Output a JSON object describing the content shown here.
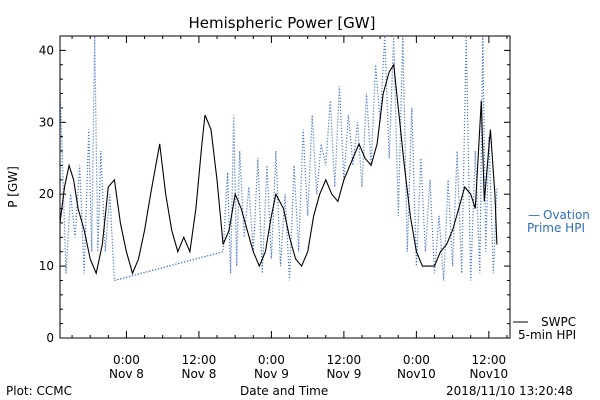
{
  "chart_data": {
    "type": "line",
    "title": "Hemispheric Power [GW]",
    "xlabel": "Date and Time",
    "ylabel": "P [GW]",
    "ylim": [
      0,
      42
    ],
    "yticks": [
      0,
      10,
      20,
      30,
      40
    ],
    "xlim": [
      "2018-11-07 13:00",
      "2018-11-10 15:30"
    ],
    "grid": false,
    "x_ticks": [
      {
        "x": "2018-11-08 00:00",
        "time": "0:00",
        "date": "Nov 8"
      },
      {
        "x": "2018-11-08 12:00",
        "time": "12:00",
        "date": "Nov 8"
      },
      {
        "x": "2018-11-09 00:00",
        "time": "0:00",
        "date": "Nov 9"
      },
      {
        "x": "2018-11-09 12:00",
        "time": "12:00",
        "date": "Nov 9"
      },
      {
        "x": "2018-11-10 00:00",
        "time": "0:00",
        "date": "Nov10"
      },
      {
        "x": "2018-11-10 12:00",
        "time": "12:00",
        "date": "Nov10"
      }
    ],
    "legend_placement": "right",
    "series": [
      {
        "name": "SWPC 5-min HPI",
        "style": "solid",
        "color": "#000000",
        "points": [
          [
            "2018-11-07 13:00",
            16
          ],
          [
            "2018-11-07 13:45",
            21
          ],
          [
            "2018-11-07 14:30",
            24
          ],
          [
            "2018-11-07 15:15",
            22
          ],
          [
            "2018-11-07 16:00",
            18
          ],
          [
            "2018-11-07 17:00",
            15
          ],
          [
            "2018-11-07 18:00",
            11
          ],
          [
            "2018-11-07 19:00",
            9
          ],
          [
            "2018-11-07 20:00",
            13
          ],
          [
            "2018-11-07 21:00",
            21
          ],
          [
            "2018-11-07 22:00",
            22
          ],
          [
            "2018-11-07 23:00",
            16
          ],
          [
            "2018-11-08 00:00",
            12
          ],
          [
            "2018-11-08 01:00",
            9
          ],
          [
            "2018-11-08 02:00",
            11
          ],
          [
            "2018-11-08 03:00",
            15
          ],
          [
            "2018-11-08 04:00",
            20
          ],
          [
            "2018-11-08 05:30",
            27
          ],
          [
            "2018-11-08 06:30",
            20
          ],
          [
            "2018-11-08 07:30",
            15
          ],
          [
            "2018-11-08 08:30",
            12
          ],
          [
            "2018-11-08 09:30",
            14
          ],
          [
            "2018-11-08 10:30",
            12
          ],
          [
            "2018-11-08 11:30",
            18
          ],
          [
            "2018-11-08 12:30",
            27
          ],
          [
            "2018-11-08 13:00",
            31
          ],
          [
            "2018-11-08 14:00",
            29
          ],
          [
            "2018-11-08 15:00",
            22
          ],
          [
            "2018-11-08 16:00",
            13
          ],
          [
            "2018-11-08 17:00",
            15
          ],
          [
            "2018-11-08 18:00",
            20
          ],
          [
            "2018-11-08 19:00",
            18
          ],
          [
            "2018-11-08 20:00",
            15
          ],
          [
            "2018-11-08 21:00",
            12
          ],
          [
            "2018-11-08 22:00",
            10
          ],
          [
            "2018-11-08 23:00",
            12
          ],
          [
            "2018-11-09 00:00",
            17
          ],
          [
            "2018-11-09 00:45",
            20
          ],
          [
            "2018-11-09 02:00",
            18
          ],
          [
            "2018-11-09 03:00",
            14
          ],
          [
            "2018-11-09 04:00",
            11
          ],
          [
            "2018-11-09 05:00",
            10
          ],
          [
            "2018-11-09 06:00",
            12
          ],
          [
            "2018-11-09 07:00",
            17
          ],
          [
            "2018-11-09 08:00",
            20
          ],
          [
            "2018-11-09 09:00",
            22
          ],
          [
            "2018-11-09 10:00",
            20
          ],
          [
            "2018-11-09 11:00",
            19
          ],
          [
            "2018-11-09 12:00",
            22
          ],
          [
            "2018-11-09 13:00",
            24
          ],
          [
            "2018-11-09 14:30",
            27
          ],
          [
            "2018-11-09 15:30",
            25
          ],
          [
            "2018-11-09 16:30",
            24
          ],
          [
            "2018-11-09 17:30",
            27
          ],
          [
            "2018-11-09 18:30",
            34
          ],
          [
            "2018-11-09 19:30",
            37
          ],
          [
            "2018-11-09 20:15",
            38
          ],
          [
            "2018-11-09 21:00",
            32
          ],
          [
            "2018-11-09 22:00",
            24
          ],
          [
            "2018-11-09 23:00",
            17
          ],
          [
            "2018-11-10 00:00",
            12
          ],
          [
            "2018-11-10 01:00",
            10
          ],
          [
            "2018-11-10 02:00",
            10
          ],
          [
            "2018-11-10 03:00",
            10
          ],
          [
            "2018-11-10 04:00",
            12
          ],
          [
            "2018-11-10 05:00",
            13
          ],
          [
            "2018-11-10 06:00",
            15
          ],
          [
            "2018-11-10 07:00",
            18
          ],
          [
            "2018-11-10 08:00",
            21
          ],
          [
            "2018-11-10 09:00",
            20
          ],
          [
            "2018-11-10 09:45",
            18
          ],
          [
            "2018-11-10 10:45",
            33
          ],
          [
            "2018-11-10 11:15",
            19
          ],
          [
            "2018-11-10 12:15",
            29
          ],
          [
            "2018-11-10 13:00",
            20
          ],
          [
            "2018-11-10 13:20",
            13
          ]
        ]
      },
      {
        "name": "Ovation Prime HPI",
        "style": "dotted",
        "color": "#4a78c8",
        "points": [
          [
            "2018-11-07 13:00",
            35
          ],
          [
            "2018-11-07 13:30",
            22
          ],
          [
            "2018-11-07 14:00",
            9
          ],
          [
            "2018-11-07 14:45",
            20
          ],
          [
            "2018-11-07 15:30",
            14
          ],
          [
            "2018-11-07 16:15",
            24
          ],
          [
            "2018-11-07 17:00",
            9
          ],
          [
            "2018-11-07 17:45",
            29
          ],
          [
            "2018-11-07 18:15",
            12
          ],
          [
            "2018-11-07 18:45",
            42
          ],
          [
            "2018-11-07 19:15",
            12
          ],
          [
            "2018-11-07 19:45",
            26
          ],
          [
            "2018-11-07 20:30",
            12
          ],
          [
            "2018-11-07 21:15",
            20
          ],
          [
            "2018-11-07 22:00",
            8
          ],
          [
            "2018-11-08 16:00",
            12
          ],
          [
            "2018-11-08 16:45",
            23
          ],
          [
            "2018-11-08 17:15",
            9
          ],
          [
            "2018-11-08 17:45",
            31
          ],
          [
            "2018-11-08 18:15",
            10
          ],
          [
            "2018-11-08 18:45",
            26
          ],
          [
            "2018-11-08 19:30",
            14
          ],
          [
            "2018-11-08 20:15",
            21
          ],
          [
            "2018-11-08 21:00",
            12
          ],
          [
            "2018-11-08 21:45",
            25
          ],
          [
            "2018-11-08 22:30",
            9
          ],
          [
            "2018-11-08 23:15",
            24
          ],
          [
            "2018-11-09 00:00",
            11
          ],
          [
            "2018-11-09 00:45",
            26
          ],
          [
            "2018-11-09 01:30",
            10
          ],
          [
            "2018-11-09 02:15",
            20
          ],
          [
            "2018-11-09 03:00",
            8
          ],
          [
            "2018-11-09 03:45",
            24
          ],
          [
            "2018-11-09 04:30",
            12
          ],
          [
            "2018-11-09 05:15",
            29
          ],
          [
            "2018-11-09 06:00",
            17
          ],
          [
            "2018-11-09 06:45",
            31
          ],
          [
            "2018-11-09 07:30",
            20
          ],
          [
            "2018-11-09 08:15",
            27
          ],
          [
            "2018-11-09 09:00",
            24
          ],
          [
            "2018-11-09 09:45",
            33
          ],
          [
            "2018-11-09 10:30",
            21
          ],
          [
            "2018-11-09 11:15",
            35
          ],
          [
            "2018-11-09 12:00",
            22
          ],
          [
            "2018-11-09 12:45",
            31
          ],
          [
            "2018-11-09 13:30",
            24
          ],
          [
            "2018-11-09 14:15",
            30
          ],
          [
            "2018-11-09 15:00",
            21
          ],
          [
            "2018-11-09 15:45",
            34
          ],
          [
            "2018-11-09 16:30",
            24
          ],
          [
            "2018-11-09 17:15",
            38
          ],
          [
            "2018-11-09 18:00",
            30
          ],
          [
            "2018-11-09 18:45",
            42
          ],
          [
            "2018-11-09 19:30",
            25
          ],
          [
            "2018-11-09 20:15",
            42
          ],
          [
            "2018-11-09 21:00",
            17
          ],
          [
            "2018-11-09 21:45",
            42
          ],
          [
            "2018-11-09 22:30",
            12
          ],
          [
            "2018-11-09 23:15",
            32
          ],
          [
            "2018-11-10 00:00",
            10
          ],
          [
            "2018-11-10 00:45",
            25
          ],
          [
            "2018-11-10 01:30",
            12
          ],
          [
            "2018-11-10 02:15",
            22
          ],
          [
            "2018-11-10 03:00",
            9
          ],
          [
            "2018-11-10 03:45",
            17
          ],
          [
            "2018-11-10 04:30",
            8
          ],
          [
            "2018-11-10 05:15",
            22
          ],
          [
            "2018-11-10 06:00",
            10
          ],
          [
            "2018-11-10 06:45",
            26
          ],
          [
            "2018-11-10 07:30",
            9
          ],
          [
            "2018-11-10 08:15",
            42
          ],
          [
            "2018-11-10 09:00",
            8
          ],
          [
            "2018-11-10 09:45",
            26
          ],
          [
            "2018-11-10 10:30",
            9
          ],
          [
            "2018-11-10 11:00",
            42
          ],
          [
            "2018-11-10 11:30",
            12
          ],
          [
            "2018-11-10 12:00",
            28
          ],
          [
            "2018-11-10 12:45",
            9
          ],
          [
            "2018-11-10 13:20",
            21
          ]
        ]
      }
    ],
    "gap_connector": {
      "series": "Ovation Prime HPI",
      "from": [
        "2018-11-07 22:00",
        8
      ],
      "to": [
        "2018-11-08 16:00",
        12
      ]
    }
  },
  "legend": {
    "ovation": {
      "marker": "—",
      "line1": "Ovation",
      "line2": "Prime HPI"
    },
    "swpc": {
      "line1": "SWPC",
      "line2": "5-min HPI"
    }
  },
  "footer": {
    "left": "Plot: CCMC",
    "center": "Date and Time",
    "right": "2018/11/10 13:20:48"
  }
}
